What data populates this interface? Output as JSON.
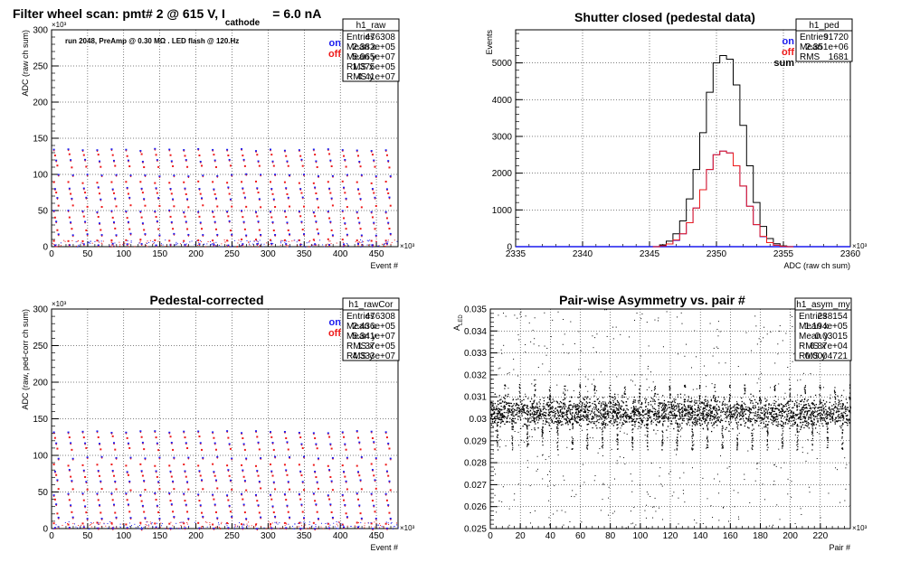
{
  "colors": {
    "on": "#1a1aee",
    "off": "#ee1a1a",
    "sum": "#000000",
    "grid": "#000000"
  },
  "chart_data": [
    {
      "id": "raw",
      "type": "scatter",
      "title": "Filter wheel scan: pmt#   2 @   615 V, I",
      "title_sub": "cathode",
      "title_tail": "= 6.0 nA",
      "annotation": "run 2048, PreAmp @ 0.30 MΩ . LED flash @  120.Hz",
      "xlabel": "Event #",
      "ylabel": "ADC (raw ch sum)",
      "x_exponent": "×10³",
      "y_exponent": "×10³",
      "xlim": [
        0,
        480
      ],
      "ylim": [
        0,
        300
      ],
      "x_ticks": [
        "0",
        "50",
        "100",
        "150",
        "200",
        "250",
        "300",
        "350",
        "400",
        "450"
      ],
      "y_ticks": [
        "0",
        "50",
        "100",
        "150",
        "200",
        "250",
        "300"
      ],
      "legend": [
        "on",
        "off"
      ],
      "stats": {
        "name": "h1_raw",
        "rows": [
          [
            "Entries",
            "476308"
          ],
          [
            "Mean x",
            "2.382e+05"
          ],
          [
            "Mean y",
            "5.065e+07"
          ],
          [
            "RMS x",
            "1.375e+05"
          ],
          [
            "RMS y",
            "4.41e+07"
          ]
        ]
      },
      "levels": [
        135,
        128,
        120,
        112,
        100,
        90,
        82,
        75,
        68,
        57,
        50,
        42,
        35,
        25,
        18,
        10,
        4
      ],
      "period": 20
    },
    {
      "id": "ped",
      "type": "line",
      "title": "Shutter closed (pedestal data)",
      "xlabel": "ADC (raw ch sum)",
      "ylabel": "Events",
      "x_exponent": "×10³",
      "xlim": [
        2335,
        2360
      ],
      "ylim": [
        0,
        5900
      ],
      "x_ticks": [
        "2335",
        "2340",
        "2345",
        "2350",
        "2355",
        "2360"
      ],
      "y_ticks": [
        "0",
        "1000",
        "2000",
        "3000",
        "4000",
        "5000"
      ],
      "legend": [
        "on",
        "off",
        "sum"
      ],
      "stats": {
        "name": "h1_ped",
        "rows": [
          [
            "Entries",
            "91720"
          ],
          [
            "Mean",
            "2.351e+06"
          ],
          [
            "RMS",
            "1681"
          ]
        ]
      },
      "series": [
        {
          "name": "sum",
          "x": [
            2345.5,
            2346,
            2346.5,
            2347,
            2347.5,
            2348,
            2348.5,
            2349,
            2349.5,
            2350,
            2350.5,
            2351,
            2351.5,
            2352,
            2352.5,
            2353,
            2353.5,
            2354,
            2354.5,
            2355,
            2355.5
          ],
          "values": [
            0,
            50,
            150,
            350,
            700,
            1300,
            2100,
            3100,
            4200,
            5000,
            5200,
            5100,
            4400,
            3300,
            2200,
            1200,
            550,
            220,
            80,
            20,
            0
          ]
        },
        {
          "name": "on",
          "x": [
            2345.5,
            2346,
            2346.5,
            2347,
            2347.5,
            2348,
            2348.5,
            2349,
            2349.5,
            2350,
            2350.5,
            2351,
            2351.5,
            2352,
            2352.5,
            2353,
            2353.5,
            2354,
            2354.5,
            2355,
            2355.5
          ],
          "values": [
            0,
            25,
            75,
            170,
            350,
            650,
            1050,
            1550,
            2100,
            2500,
            2600,
            2550,
            2200,
            1650,
            1100,
            600,
            270,
            110,
            40,
            10,
            0
          ]
        },
        {
          "name": "off",
          "x": [
            2345.5,
            2346,
            2346.5,
            2347,
            2347.5,
            2348,
            2348.5,
            2349,
            2349.5,
            2350,
            2350.5,
            2351,
            2351.5,
            2352,
            2352.5,
            2353,
            2353.5,
            2354,
            2354.5,
            2355,
            2355.5
          ],
          "values": [
            0,
            25,
            75,
            180,
            350,
            650,
            1050,
            1550,
            2100,
            2500,
            2600,
            2550,
            2200,
            1650,
            1100,
            600,
            280,
            110,
            40,
            10,
            0
          ]
        }
      ]
    },
    {
      "id": "rawcor",
      "type": "scatter",
      "title": "Pedestal-corrected",
      "xlabel": "Event #",
      "ylabel": "ADC (raw, ped-corr ch sum)",
      "x_exponent": "×10³",
      "y_exponent": "×10³",
      "xlim": [
        0,
        480
      ],
      "ylim": [
        0,
        300
      ],
      "x_ticks": [
        "0",
        "50",
        "100",
        "150",
        "200",
        "250",
        "300",
        "350",
        "400",
        "450"
      ],
      "y_ticks": [
        "0",
        "50",
        "100",
        "150",
        "200",
        "250",
        "300"
      ],
      "legend": [
        "on",
        "off"
      ],
      "stats": {
        "name": "h1_rawCor",
        "rows": [
          [
            "Entries",
            "476308"
          ],
          [
            "Mean x",
            "2.436e+05"
          ],
          [
            "Mean y",
            "5.341e+07"
          ],
          [
            "RMS x",
            "1.37e+05"
          ],
          [
            "RMS y",
            "4.333e+07"
          ]
        ]
      },
      "levels": [
        133,
        126,
        118,
        110,
        98,
        88,
        80,
        73,
        66,
        55,
        48,
        40,
        33,
        23,
        16,
        8,
        2
      ],
      "period": 20
    },
    {
      "id": "asym",
      "type": "scatter",
      "title": "Pair-wise Asymmetry vs. pair #",
      "xlabel": "Pair #",
      "ylabel": "A_LED",
      "x_exponent": "×10³",
      "xlim": [
        0,
        240
      ],
      "ylim": [
        0.025,
        0.035
      ],
      "x_ticks": [
        "0",
        "20",
        "40",
        "60",
        "80",
        "100",
        "120",
        "140",
        "160",
        "180",
        "200",
        "220"
      ],
      "y_ticks": [
        "0.025",
        "0.026",
        "0.027",
        "0.028",
        "0.029",
        "0.03",
        "0.031",
        "0.032",
        "0.033",
        "0.034",
        "0.035"
      ],
      "stats": {
        "name": "h1_asym_my",
        "rows": [
          [
            "Entries",
            "238154"
          ],
          [
            "Mean x",
            "1.194e+05"
          ],
          [
            "Mean y",
            "0.03015"
          ],
          [
            "RMS x",
            "6.87e+04"
          ],
          [
            "RMS y",
            "0.0004721"
          ]
        ]
      },
      "band_center": 0.0303,
      "band_halfwidth": 0.0005,
      "spike_period": 10
    }
  ]
}
